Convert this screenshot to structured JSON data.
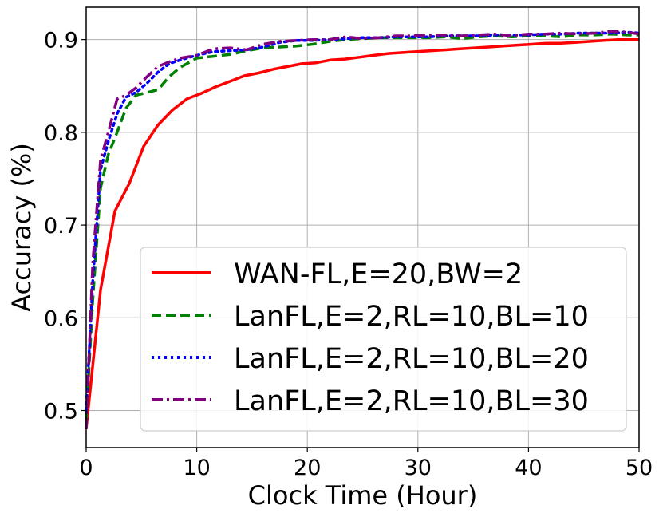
{
  "chart_data": {
    "type": "line",
    "xlabel": "Clock Time (Hour)",
    "ylabel": "Accuracy (%)",
    "xlim": [
      0,
      50
    ],
    "ylim": [
      0.46,
      0.935
    ],
    "xticks": [
      0,
      10,
      20,
      30,
      40,
      50
    ],
    "yticks": [
      0.5,
      0.6,
      0.7,
      0.8,
      0.9
    ],
    "xtick_labels": [
      "0",
      "10",
      "20",
      "30",
      "40",
      "50"
    ],
    "ytick_labels": [
      "0.5",
      "0.6",
      "0.7",
      "0.8",
      "0.9"
    ],
    "grid": true,
    "legend_position": "lower-right",
    "series": [
      {
        "name": "WAN-FL,E=20,BW=2",
        "color": "#ff0000",
        "style": "solid",
        "x": [
          0,
          1.3,
          2.6,
          3.9,
          5.2,
          6.5,
          7.8,
          9.1,
          10.4,
          11.7,
          13,
          14.3,
          15.6,
          16.9,
          18.2,
          19.5,
          20.8,
          22.1,
          23.4,
          24.7,
          26,
          27.3,
          28.6,
          29.9,
          31.2,
          32.5,
          33.8,
          35.1,
          36.4,
          37.7,
          39,
          40.3,
          41.6,
          42.9,
          44.2,
          45.5,
          46.8,
          48.1,
          49.4,
          50
        ],
        "y": [
          0.48,
          0.63,
          0.715,
          0.745,
          0.785,
          0.808,
          0.824,
          0.836,
          0.842,
          0.849,
          0.855,
          0.861,
          0.864,
          0.868,
          0.871,
          0.874,
          0.875,
          0.878,
          0.879,
          0.881,
          0.883,
          0.885,
          0.886,
          0.887,
          0.888,
          0.889,
          0.89,
          0.891,
          0.892,
          0.893,
          0.894,
          0.895,
          0.896,
          0.896,
          0.897,
          0.898,
          0.899,
          0.9,
          0.9,
          0.9
        ]
      },
      {
        "name": "LanFL,E=2,RL=10,BL=10",
        "color": "#008000",
        "style": "dashed",
        "x": [
          0,
          0.6,
          1.3,
          2,
          2.8,
          3.6,
          4.5,
          5.5,
          6.5,
          7.5,
          8.5,
          10,
          11.5,
          13,
          14.5,
          16,
          17.5,
          19,
          20.5,
          22,
          23.5,
          25,
          26.5,
          28,
          29.5,
          31,
          32.5,
          34,
          35.5,
          37,
          38.5,
          40,
          41.5,
          43,
          44.5,
          46,
          47.5,
          49,
          50
        ],
        "y": [
          0.49,
          0.62,
          0.74,
          0.776,
          0.8,
          0.826,
          0.84,
          0.843,
          0.846,
          0.86,
          0.87,
          0.88,
          0.882,
          0.884,
          0.888,
          0.891,
          0.892,
          0.893,
          0.895,
          0.898,
          0.9,
          0.901,
          0.902,
          0.902,
          0.902,
          0.902,
          0.903,
          0.901,
          0.903,
          0.904,
          0.903,
          0.904,
          0.904,
          0.903,
          0.905,
          0.905,
          0.906,
          0.905,
          0.905
        ]
      },
      {
        "name": "LanFL,E=2,RL=10,BL=20",
        "color": "#0000ff",
        "style": "dotted",
        "x": [
          0,
          0.6,
          1.3,
          2,
          2.8,
          3.6,
          4.5,
          5.5,
          6.5,
          7.5,
          8.5,
          10,
          11.5,
          13,
          14.5,
          16,
          17.5,
          19,
          20.5,
          22,
          23.5,
          25,
          26.5,
          28,
          29.5,
          31,
          32.5,
          34,
          35.5,
          37,
          38.5,
          40,
          41.5,
          43,
          44.5,
          46,
          47.5,
          49,
          50
        ],
        "y": [
          0.5,
          0.64,
          0.76,
          0.79,
          0.82,
          0.838,
          0.843,
          0.853,
          0.865,
          0.874,
          0.878,
          0.883,
          0.887,
          0.888,
          0.889,
          0.892,
          0.897,
          0.899,
          0.899,
          0.9,
          0.901,
          0.902,
          0.902,
          0.903,
          0.903,
          0.903,
          0.904,
          0.904,
          0.904,
          0.905,
          0.905,
          0.905,
          0.906,
          0.906,
          0.907,
          0.907,
          0.907,
          0.908,
          0.907
        ]
      },
      {
        "name": "LanFL,E=2,RL=10,BL=30",
        "color": "#800080",
        "style": "dashdot",
        "x": [
          0,
          0.6,
          1.3,
          2,
          2.8,
          3.6,
          4.5,
          5.5,
          6.5,
          7.5,
          8.5,
          10,
          11.5,
          13,
          14.5,
          16,
          17.5,
          19,
          20.5,
          22,
          23.5,
          25,
          26.5,
          28,
          29.5,
          31,
          32.5,
          34,
          35.5,
          37,
          38.5,
          40,
          41.5,
          43,
          44.5,
          46,
          47.5,
          49,
          50
        ],
        "y": [
          0.48,
          0.66,
          0.77,
          0.8,
          0.836,
          0.84,
          0.848,
          0.86,
          0.871,
          0.876,
          0.88,
          0.883,
          0.89,
          0.891,
          0.889,
          0.895,
          0.898,
          0.899,
          0.9,
          0.9,
          0.903,
          0.901,
          0.902,
          0.904,
          0.904,
          0.905,
          0.905,
          0.904,
          0.905,
          0.906,
          0.904,
          0.906,
          0.906,
          0.907,
          0.906,
          0.907,
          0.909,
          0.908,
          0.906
        ]
      }
    ]
  }
}
